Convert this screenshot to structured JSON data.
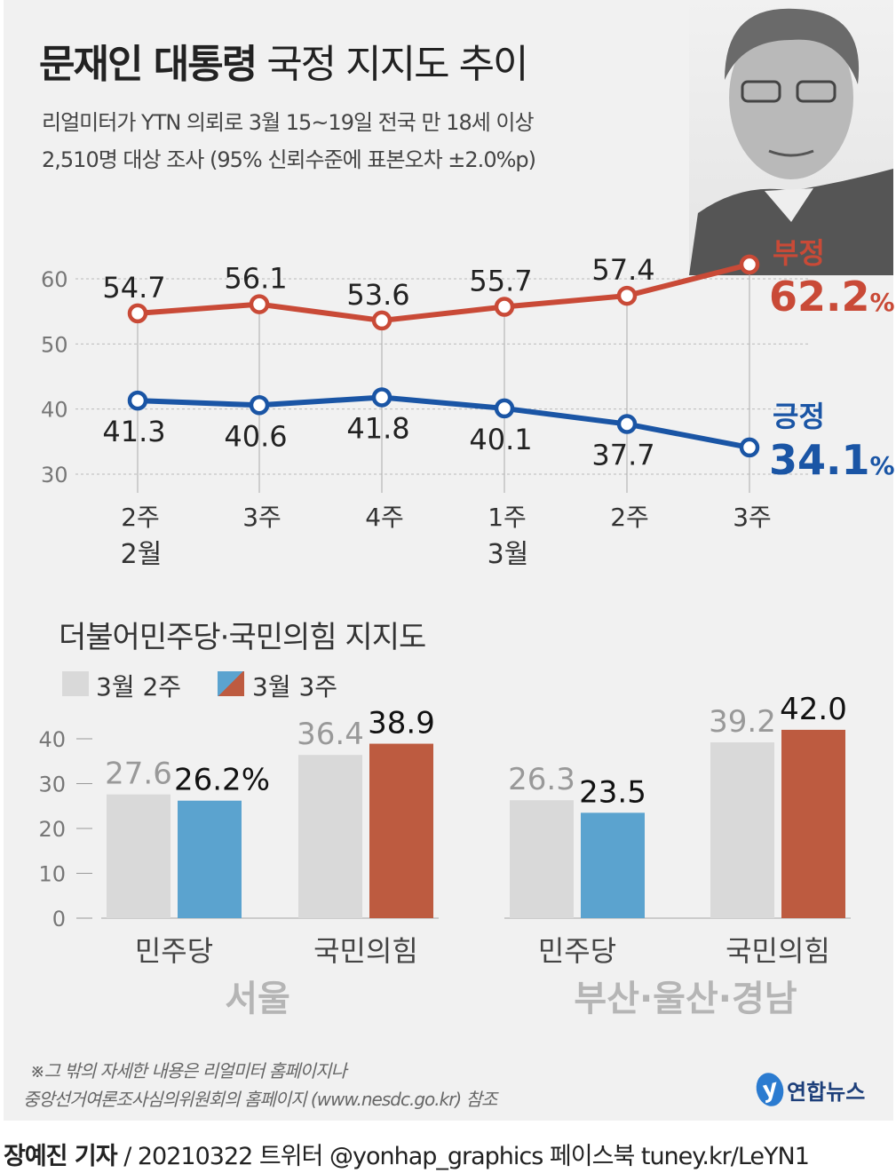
{
  "header": {
    "title_bold": "문재인 대통령",
    "title_light": "국정 지지도 추이",
    "subtitle_line1": "리얼미터가 YTN 의뢰로 3월 15~19일 전국 만 18세 이상",
    "subtitle_line2": "2,510명 대상 조사 (95% 신뢰수준에 표본오차 ±2.0%p)"
  },
  "colors": {
    "negative": "#c94a37",
    "positive": "#1a55a5",
    "prev": "#d9d9d9",
    "dem": "#5ba3cf",
    "ppp": "#bd5b40",
    "grid": "#bbbbbb"
  },
  "chart_data": [
    {
      "type": "line",
      "title": "문재인 대통령 국정 지지도 추이",
      "categories": [
        "2주",
        "3주",
        "4주",
        "1주",
        "2주",
        "3주"
      ],
      "month_labels": [
        {
          "index": 0,
          "label": "2월"
        },
        {
          "index": 3,
          "label": "3월"
        }
      ],
      "yticks": [
        30,
        40,
        50,
        60
      ],
      "ylim": [
        30,
        60
      ],
      "grid": true,
      "series": [
        {
          "name": "부정",
          "values": [
            54.7,
            56.1,
            53.6,
            55.7,
            57.4,
            62.2
          ],
          "final_label": "62.2",
          "unit": "%"
        },
        {
          "name": "긍정",
          "values": [
            41.3,
            40.6,
            41.8,
            40.1,
            37.7,
            34.1
          ],
          "final_label": "34.1",
          "unit": "%"
        }
      ]
    },
    {
      "type": "bar",
      "title": "더불어민주당·국민의힘 지지도",
      "legend": [
        "3월 2주",
        "3월 3주"
      ],
      "yticks": [
        0,
        10,
        20,
        30,
        40
      ],
      "ylim": [
        0,
        40
      ],
      "groups": [
        {
          "region": "서울",
          "parties": [
            {
              "name": "민주당",
              "values": [
                27.6,
                26.2
              ],
              "labels": [
                "27.6",
                "26.2%"
              ]
            },
            {
              "name": "국민의힘",
              "values": [
                36.4,
                38.9
              ],
              "labels": [
                "36.4",
                "38.9"
              ]
            }
          ]
        },
        {
          "region": "부산·울산·경남",
          "parties": [
            {
              "name": "민주당",
              "values": [
                26.3,
                23.5
              ],
              "labels": [
                "26.3",
                "23.5"
              ]
            },
            {
              "name": "국민의힘",
              "values": [
                39.2,
                42.0
              ],
              "labels": [
                "39.2",
                "42.0"
              ]
            }
          ]
        }
      ]
    }
  ],
  "footer": {
    "note_line1": "※그 밖의 자세한 내용은 리얼미터 홈페이지나",
    "note_line2": "중앙선거여론조사심의위원회의 홈페이지 (www.nesdc.go.kr) 참조",
    "logo_text": "연합뉴스",
    "reporter": "장예진 기자",
    "credit_rest": " / 20210322 트위터 @yonhap_graphics  페이스북 tuney.kr/LeYN1"
  }
}
